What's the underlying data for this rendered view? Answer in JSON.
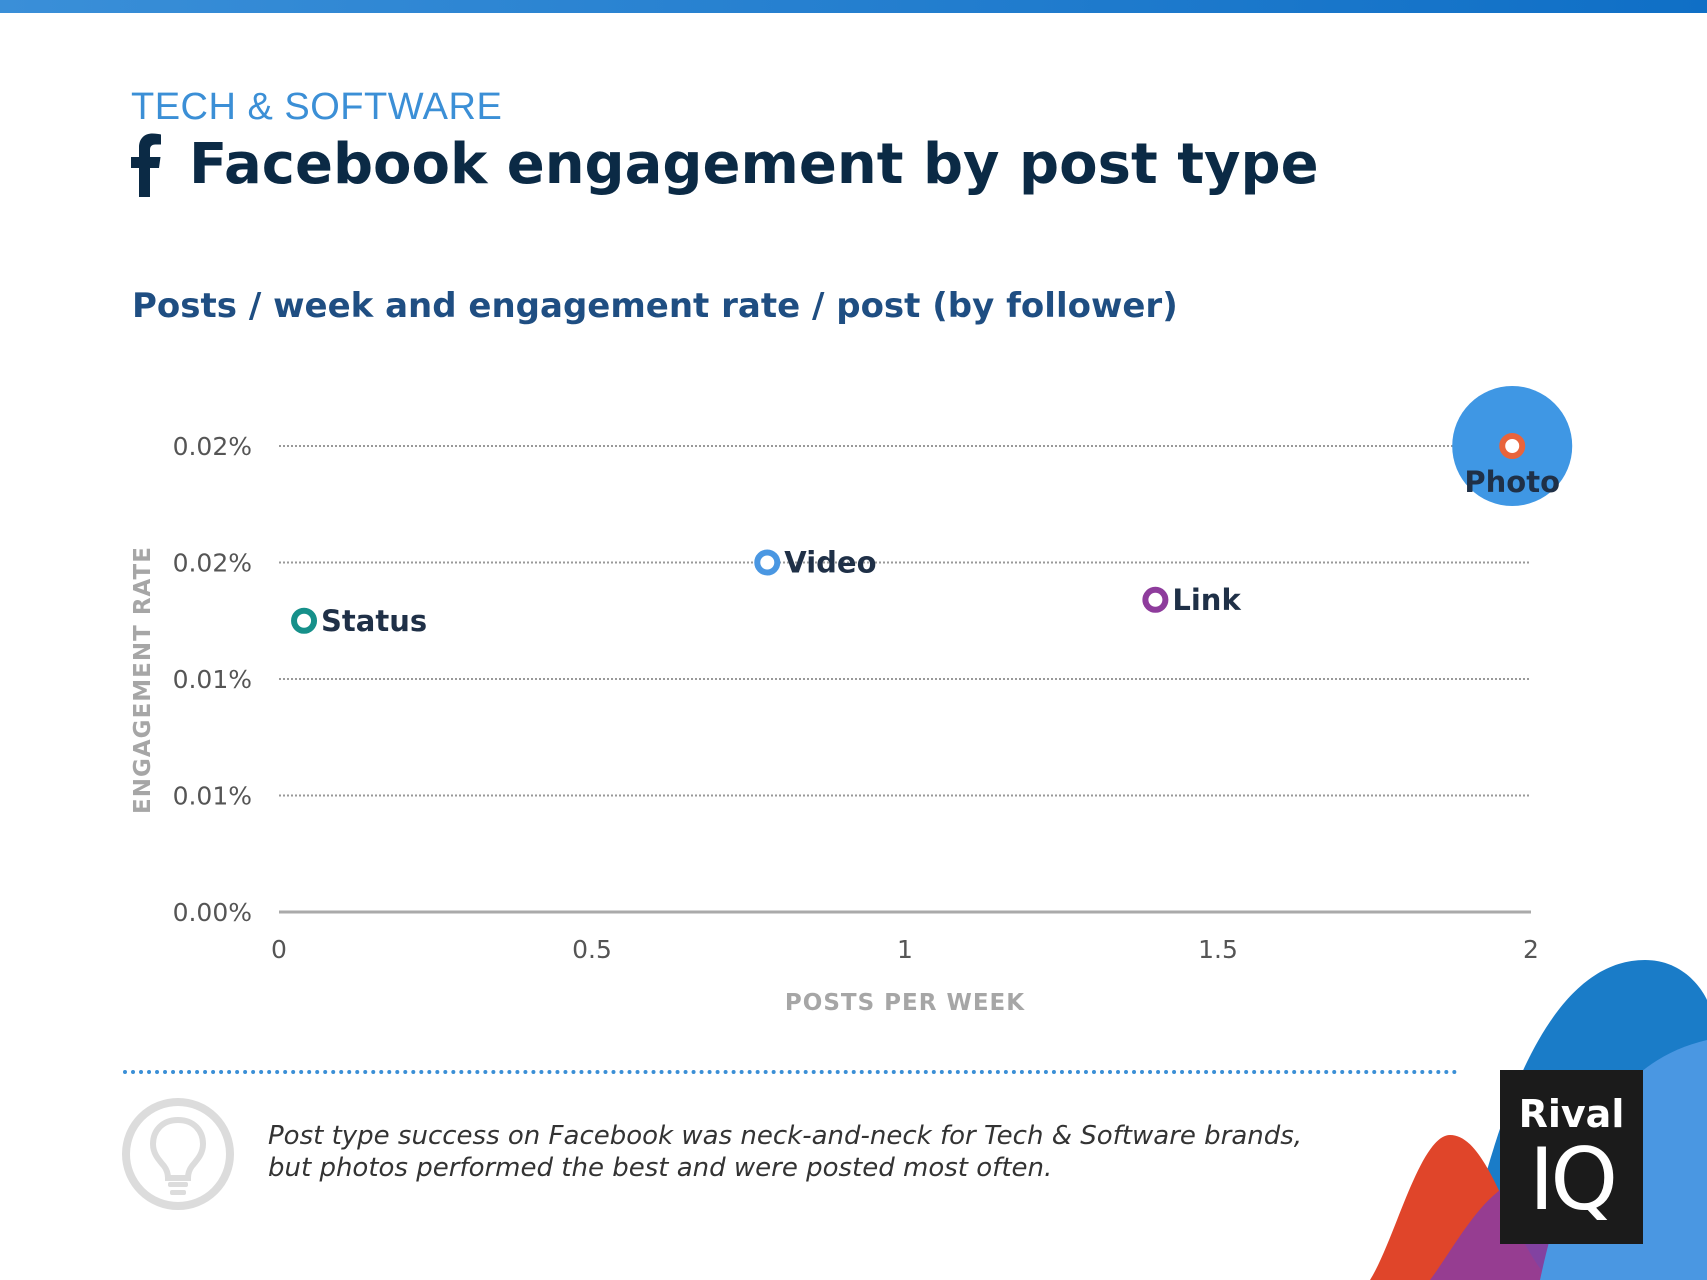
{
  "header": {
    "category": "TECH & SOFTWARE",
    "title": "Facebook engagement by post type",
    "subtitle": "Posts / week and engagement rate / post (by follower)"
  },
  "chart_data": {
    "type": "scatter",
    "xlabel": "POSTS PER WEEK",
    "ylabel": "ENGAGEMENT RATE",
    "xlim": [
      0,
      2
    ],
    "ylim": [
      0,
      0.02
    ],
    "x_ticks": [
      0,
      0.5,
      1,
      1.5,
      2
    ],
    "x_tick_labels": [
      "0",
      "0.5",
      "1",
      "1.5",
      "2"
    ],
    "y_ticks": [
      0,
      0.005,
      0.01,
      0.015,
      0.02
    ],
    "y_tick_labels": [
      "0.00%",
      "0.01%",
      "0.01%",
      "0.02%",
      "0.02%"
    ],
    "grid": true,
    "points": [
      {
        "name": "Status",
        "x": 0.04,
        "y": 0.0125,
        "color": "#16908a"
      },
      {
        "name": "Video",
        "x": 0.78,
        "y": 0.015,
        "color": "#4a97e2"
      },
      {
        "name": "Link",
        "x": 1.4,
        "y": 0.0134,
        "color": "#8e3c9c"
      },
      {
        "name": "Photo",
        "x": 1.97,
        "y": 0.02,
        "color": "#e8643c",
        "highlight_color": "#3f97e4"
      }
    ]
  },
  "note": {
    "text": "Post type success on Facebook was neck-and-neck for Tech & Software brands, but photos performed the best and were posted most often."
  },
  "logo": {
    "line1": "Rival",
    "line2": "IQ"
  }
}
